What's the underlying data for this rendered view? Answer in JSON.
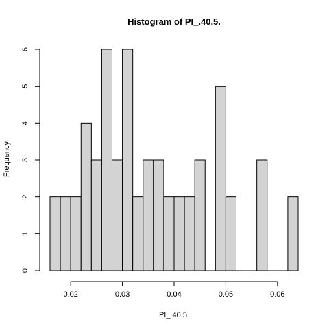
{
  "chart_data": {
    "type": "bar",
    "title": "Histogram of PI_.40.5.",
    "xlabel": "PI_.40.5.",
    "ylabel": "Frequency",
    "xlim": [
      0.016,
      0.064
    ],
    "ylim": [
      0,
      6
    ],
    "x_ticks": [
      {
        "value": 0.02,
        "label": "0.02"
      },
      {
        "value": 0.03,
        "label": "0.03"
      },
      {
        "value": 0.04,
        "label": "0.04"
      },
      {
        "value": 0.05,
        "label": "0.05"
      },
      {
        "value": 0.06,
        "label": "0.06"
      }
    ],
    "y_ticks": [
      {
        "value": 0,
        "label": "0"
      },
      {
        "value": 1,
        "label": "1"
      },
      {
        "value": 2,
        "label": "2"
      },
      {
        "value": 3,
        "label": "3"
      },
      {
        "value": 4,
        "label": "4"
      },
      {
        "value": 5,
        "label": "5"
      },
      {
        "value": 6,
        "label": "6"
      }
    ],
    "bin_width": 0.002,
    "bins": [
      {
        "start": 0.016,
        "end": 0.018,
        "count": 2
      },
      {
        "start": 0.018,
        "end": 0.02,
        "count": 2
      },
      {
        "start": 0.02,
        "end": 0.022,
        "count": 2
      },
      {
        "start": 0.022,
        "end": 0.024,
        "count": 4
      },
      {
        "start": 0.024,
        "end": 0.026,
        "count": 3
      },
      {
        "start": 0.026,
        "end": 0.028,
        "count": 6
      },
      {
        "start": 0.028,
        "end": 0.03,
        "count": 3
      },
      {
        "start": 0.03,
        "end": 0.032,
        "count": 6
      },
      {
        "start": 0.032,
        "end": 0.034,
        "count": 2
      },
      {
        "start": 0.034,
        "end": 0.036,
        "count": 3
      },
      {
        "start": 0.036,
        "end": 0.038,
        "count": 3
      },
      {
        "start": 0.038,
        "end": 0.04,
        "count": 2
      },
      {
        "start": 0.04,
        "end": 0.042,
        "count": 2
      },
      {
        "start": 0.042,
        "end": 0.044,
        "count": 2
      },
      {
        "start": 0.044,
        "end": 0.046,
        "count": 3
      },
      {
        "start": 0.046,
        "end": 0.048,
        "count": 0
      },
      {
        "start": 0.048,
        "end": 0.05,
        "count": 5
      },
      {
        "start": 0.05,
        "end": 0.052,
        "count": 2
      },
      {
        "start": 0.052,
        "end": 0.054,
        "count": 0
      },
      {
        "start": 0.054,
        "end": 0.056,
        "count": 0
      },
      {
        "start": 0.056,
        "end": 0.058,
        "count": 3
      },
      {
        "start": 0.058,
        "end": 0.06,
        "count": 0
      },
      {
        "start": 0.06,
        "end": 0.062,
        "count": 0
      },
      {
        "start": 0.062,
        "end": 0.064,
        "count": 2
      }
    ],
    "bar_fill": "#d3d3d3",
    "bar_stroke": "#000000",
    "grid": false,
    "legend": "none"
  }
}
